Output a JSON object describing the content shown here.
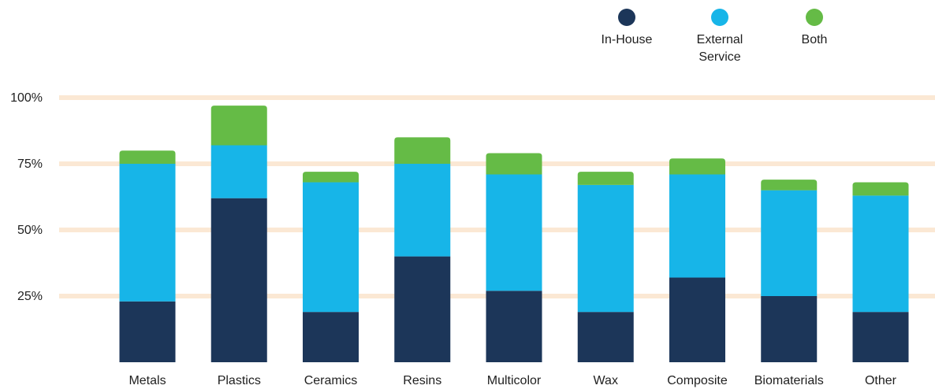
{
  "chart_data": {
    "type": "bar",
    "stacked": true,
    "title": "",
    "xlabel": "",
    "ylabel": "",
    "ylim": [
      0,
      100
    ],
    "y_ticks": [
      "25%",
      "50%",
      "75%",
      "100%"
    ],
    "categories": [
      "Metals",
      "Plastics",
      "Ceramics",
      "Resins",
      "Multicolor",
      "Wax",
      "Composite",
      "Biomaterials",
      "Other"
    ],
    "series": [
      {
        "name": "In-House",
        "color": "#1c3659",
        "values": [
          23,
          62,
          19,
          40,
          27,
          19,
          32,
          25,
          19
        ]
      },
      {
        "name": "External Service",
        "color": "#17b5e8",
        "values": [
          52,
          20,
          49,
          35,
          44,
          48,
          39,
          40,
          44
        ]
      },
      {
        "name": "Both",
        "color": "#65bb46",
        "values": [
          5,
          15,
          4,
          10,
          8,
          5,
          6,
          4,
          5
        ]
      }
    ],
    "legend": {
      "position": "top-right",
      "labels": [
        [
          "In-House"
        ],
        [
          "External",
          "Service"
        ],
        [
          "Both"
        ]
      ]
    },
    "gridline_color": "#fbe8d4",
    "grid": true
  }
}
